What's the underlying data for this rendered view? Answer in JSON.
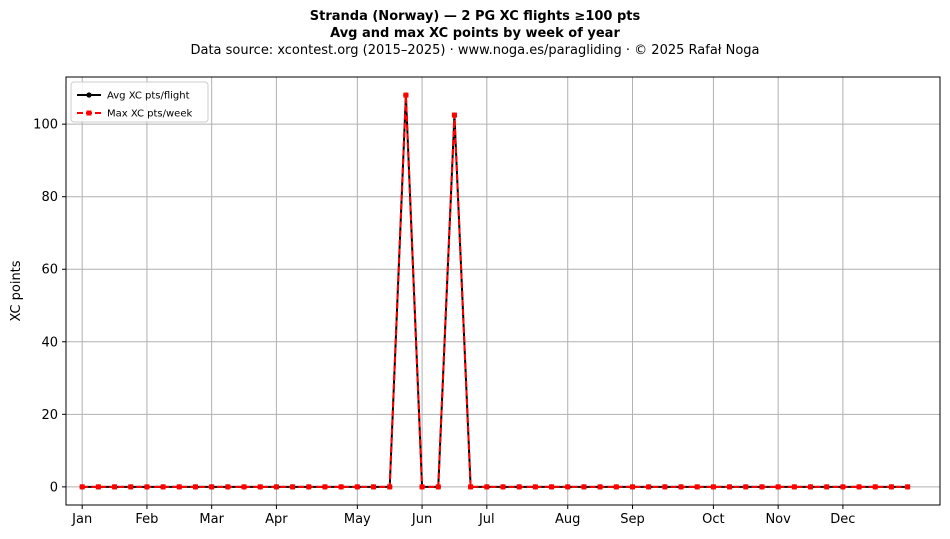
{
  "chart_data": {
    "type": "line",
    "title": "Stranda (Norway)  —  2 PG XC flights ≥100 pts",
    "subtitle": "Avg and max XC points by week of year",
    "source": "Data source: xcontest.org (2015–2025)  ·  www.noga.es/paragliding  ·  © 2025 Rafał Noga",
    "xlabel": "",
    "ylabel": "XC points",
    "xlim": [
      0,
      54
    ],
    "ylim": [
      -5,
      113
    ],
    "grid": true,
    "legend_position": "top-left",
    "x_ticks": [
      {
        "label": "Jan",
        "x": 1
      },
      {
        "label": "Feb",
        "x": 5
      },
      {
        "label": "Mar",
        "x": 9
      },
      {
        "label": "Apr",
        "x": 13
      },
      {
        "label": "May",
        "x": 18
      },
      {
        "label": "Jun",
        "x": 22
      },
      {
        "label": "Jul",
        "x": 26
      },
      {
        "label": "Aug",
        "x": 31
      },
      {
        "label": "Sep",
        "x": 35
      },
      {
        "label": "Oct",
        "x": 40
      },
      {
        "label": "Nov",
        "x": 44
      },
      {
        "label": "Dec",
        "x": 48
      }
    ],
    "y_ticks": [
      0,
      20,
      40,
      60,
      80,
      100
    ],
    "x": [
      1,
      2,
      3,
      4,
      5,
      6,
      7,
      8,
      9,
      10,
      11,
      12,
      13,
      14,
      15,
      16,
      17,
      18,
      19,
      20,
      21,
      22,
      23,
      24,
      25,
      26,
      27,
      28,
      29,
      30,
      31,
      32,
      33,
      34,
      35,
      36,
      37,
      38,
      39,
      40,
      41,
      42,
      43,
      44,
      45,
      46,
      47,
      48,
      49,
      50,
      51,
      52
    ],
    "series": [
      {
        "name": "Avg XC pts/flight",
        "color": "#000000",
        "marker": "circle",
        "linestyle": "solid",
        "values": [
          0,
          0,
          0,
          0,
          0,
          0,
          0,
          0,
          0,
          0,
          0,
          0,
          0,
          0,
          0,
          0,
          0,
          0,
          0,
          0,
          108,
          0,
          0,
          102.5,
          0,
          0,
          0,
          0,
          0,
          0,
          0,
          0,
          0,
          0,
          0,
          0,
          0,
          0,
          0,
          0,
          0,
          0,
          0,
          0,
          0,
          0,
          0,
          0,
          0,
          0,
          0,
          0
        ]
      },
      {
        "name": "Max XC pts/week",
        "color": "#ff0000",
        "marker": "square",
        "linestyle": "dashed",
        "values": [
          0,
          0,
          0,
          0,
          0,
          0,
          0,
          0,
          0,
          0,
          0,
          0,
          0,
          0,
          0,
          0,
          0,
          0,
          0,
          0,
          108,
          0,
          0,
          102.5,
          0,
          0,
          0,
          0,
          0,
          0,
          0,
          0,
          0,
          0,
          0,
          0,
          0,
          0,
          0,
          0,
          0,
          0,
          0,
          0,
          0,
          0,
          0,
          0,
          0,
          0,
          0,
          0
        ]
      }
    ]
  }
}
